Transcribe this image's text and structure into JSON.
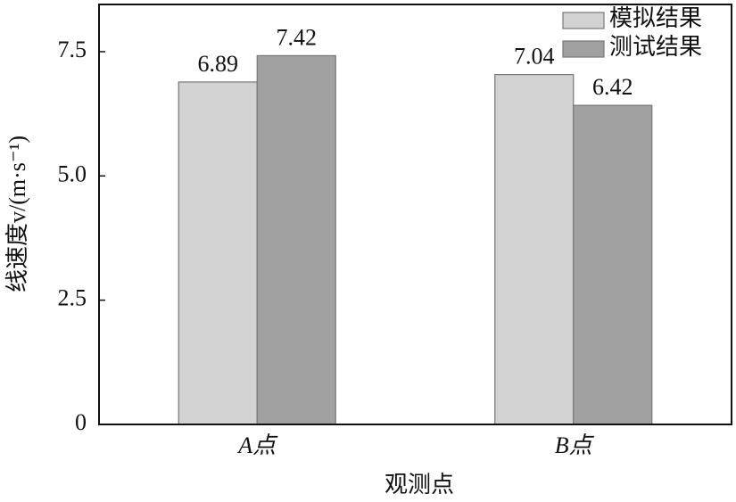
{
  "chart_data": {
    "type": "bar",
    "x_label": "观测点",
    "y_label": "线速度v/(m·s⁻¹)",
    "categories": [
      "A点",
      "B点"
    ],
    "series": [
      {
        "name": "模拟结果",
        "color": "#d2d2d2",
        "values": [
          6.89,
          7.04
        ]
      },
      {
        "name": "测试结果",
        "color": "#a0a0a0",
        "values": [
          7.42,
          6.42
        ]
      }
    ],
    "ylim": [
      0,
      8.45
    ],
    "yticks": [
      0,
      2.5,
      {
        "value": 5,
        "label": "5.0"
      },
      7.5
    ],
    "legend": "upper right"
  }
}
